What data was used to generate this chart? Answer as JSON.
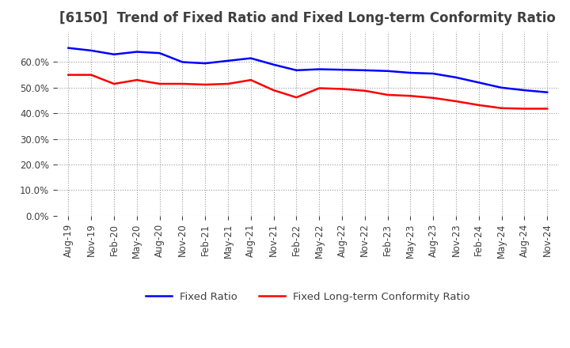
{
  "title": "[6150]  Trend of Fixed Ratio and Fixed Long-term Conformity Ratio",
  "x_labels": [
    "Aug-19",
    "Nov-19",
    "Feb-20",
    "May-20",
    "Aug-20",
    "Nov-20",
    "Feb-21",
    "May-21",
    "Aug-21",
    "Nov-21",
    "Feb-22",
    "May-22",
    "Aug-22",
    "Nov-22",
    "Feb-23",
    "May-23",
    "Aug-23",
    "Nov-23",
    "Feb-24",
    "May-24",
    "Aug-24",
    "Nov-24"
  ],
  "fixed_ratio": [
    0.655,
    0.645,
    0.63,
    0.64,
    0.635,
    0.6,
    0.595,
    0.605,
    0.615,
    0.59,
    0.568,
    0.572,
    0.57,
    0.568,
    0.565,
    0.558,
    0.555,
    0.54,
    0.52,
    0.5,
    0.49,
    0.482
  ],
  "fixed_lt_conformity": [
    0.55,
    0.55,
    0.515,
    0.53,
    0.515,
    0.515,
    0.512,
    0.515,
    0.53,
    0.49,
    0.462,
    0.498,
    0.495,
    0.488,
    0.472,
    0.468,
    0.46,
    0.447,
    0.432,
    0.42,
    0.418,
    0.418
  ],
  "fixed_ratio_color": "#0000FF",
  "fixed_lt_color": "#FF0000",
  "ylim": [
    0.0,
    0.72
  ],
  "yticks": [
    0.0,
    0.1,
    0.2,
    0.3,
    0.4,
    0.5,
    0.6
  ],
  "background_color": "#FFFFFF",
  "grid_color": "#808080",
  "legend_fixed_ratio": "Fixed Ratio",
  "legend_fixed_lt": "Fixed Long-term Conformity Ratio",
  "title_fontsize": 12,
  "tick_fontsize": 8.5,
  "legend_fontsize": 9.5,
  "title_color": "#404040",
  "tick_color": "#404040"
}
